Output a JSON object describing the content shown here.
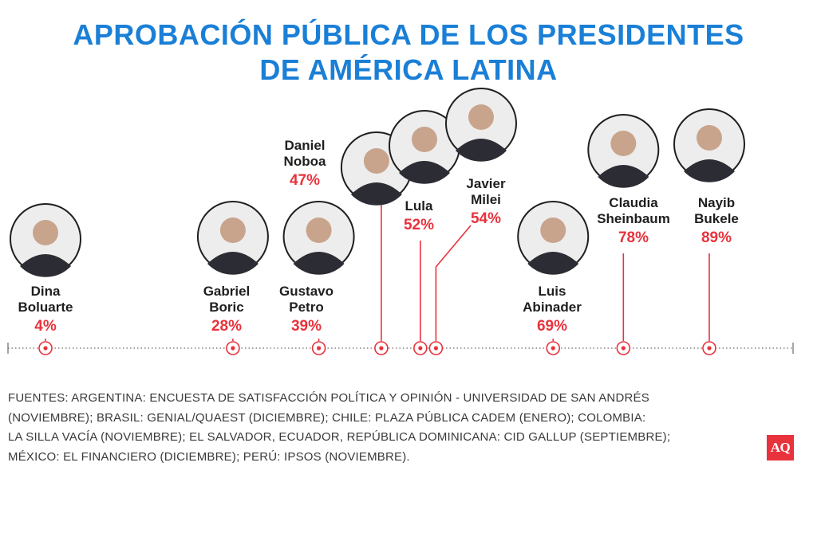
{
  "title_lines": [
    "APROBACIÓN PÚBLICA DE LOS PRESIDENTES",
    "DE AMÉRICA LATINA"
  ],
  "chart_data": {
    "type": "timeline",
    "unit": "%",
    "xlim": [
      0,
      100
    ],
    "points": [
      {
        "name_lines": [
          "Dina",
          "Boluarte"
        ],
        "value": 4,
        "label": "4%"
      },
      {
        "name_lines": [
          "Gabriel",
          "Boric"
        ],
        "value": 28,
        "label": "28%"
      },
      {
        "name_lines": [
          "Gustavo",
          "Petro"
        ],
        "value": 39,
        "label": "39%"
      },
      {
        "name_lines": [
          "Daniel",
          "Noboa"
        ],
        "value": 47,
        "label": "47%"
      },
      {
        "name_lines": [
          "Lula"
        ],
        "value": 52,
        "label": "52%"
      },
      {
        "name_lines": [
          "Javier",
          "Milei"
        ],
        "value": 54,
        "label": "54%"
      },
      {
        "name_lines": [
          "Luis",
          "Abinader"
        ],
        "value": 69,
        "label": "69%"
      },
      {
        "name_lines": [
          "Claudia",
          "Sheinbaum"
        ],
        "value": 78,
        "label": "78%"
      },
      {
        "name_lines": [
          "Nayib",
          "Bukele"
        ],
        "value": 89,
        "label": "89%"
      }
    ]
  },
  "sources_lines": [
    "FUENTES: ARGENTINA: ENCUESTA DE SATISFACCIÓN POLÍTICA Y OPINIÓN - UNIVERSIDAD DE SAN ANDRÉS",
    "(NOVIEMBRE); BRASIL: GENIAL/QUAEST (DICIEMBRE); CHILE: PLAZA PÚBLICA CADEM (ENERO); COLOMBIA:",
    "LA SILLA VACÍA (NOVIEMBRE); EL SALVADOR, ECUADOR, REPÚBLICA DOMINICANA: CID GALLUP (SEPTIEMBRE);",
    "MÉXICO: EL FINANCIERO (DICIEMBRE); PERÚ: IPSOS (NOVIEMBRE)."
  ],
  "logo_text": "AQ",
  "colors": {
    "title": "#1a7fd6",
    "accent": "#e8323c",
    "text": "#1f1f1f"
  }
}
